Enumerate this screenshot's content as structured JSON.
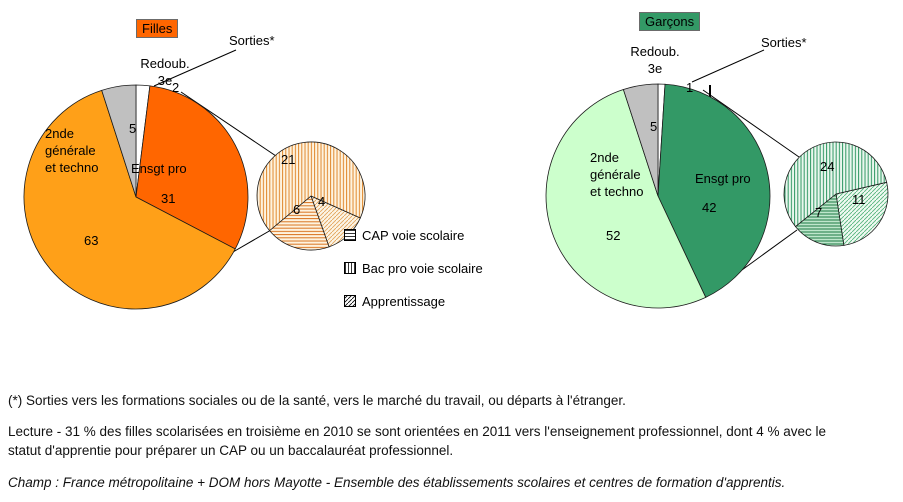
{
  "page": {
    "footnote_sorties": "(*) Sorties vers les formations sociales ou de la santé, vers le marché du travail, ou départs à l'étranger.",
    "lecture": "Lecture - 31 % des filles scolarisées en troisième en 2010 se sont orientées en 2011 vers l'enseignement professionnel, dont 4 % avec le statut d'apprentie pour préparer un CAP ou un baccalauréat professionnel.",
    "champ": "Champ : France métropolitaine + DOM hors Mayotte - Ensemble des établissements scolaires et centres de formation d'apprentis."
  },
  "legend": {
    "position": "center-left between the two chart groups"
  },
  "chart_data": [
    {
      "type": "pie",
      "name": "filles-main",
      "title": "Filles",
      "title_bg": "#FF6600",
      "start_angle_deg": 0,
      "slices": [
        {
          "label": "Sorties*",
          "value": 2,
          "fill": "#FFFFFF"
        },
        {
          "label": "Ensgt pro",
          "value": 31,
          "fill": "#FF6600"
        },
        {
          "label": "2nde générale et techno",
          "value": 63,
          "fill": "#FFA018"
        },
        {
          "label": "Redoub. 3e",
          "value": 5,
          "fill": "#C0C0C0"
        }
      ]
    },
    {
      "type": "pie",
      "name": "filles-detail-ensgt-pro",
      "start_angle_deg": 114,
      "slices": [
        {
          "label": "Apprentissage",
          "value": 4,
          "fill": "hatch-diagonal-orange"
        },
        {
          "label": "CAP voie scolaire",
          "value": 6,
          "fill": "hatch-horizontal-orange"
        },
        {
          "label": "Bac pro voie scolaire",
          "value": 21,
          "fill": "hatch-vertical-orange"
        }
      ]
    },
    {
      "type": "pie",
      "name": "garcons-main",
      "title": "Garçons",
      "title_bg": "#339966",
      "start_angle_deg": 0,
      "slices": [
        {
          "label": "Sorties*",
          "value": 1,
          "fill": "#FFFFFF"
        },
        {
          "label": "Ensgt pro",
          "value": 42,
          "fill": "#339966"
        },
        {
          "label": "2nde générale et techno",
          "value": 52,
          "fill": "#CCFFCC"
        },
        {
          "label": "Redoub. 3e",
          "value": 5,
          "fill": "#C0C0C0"
        }
      ]
    },
    {
      "type": "pie",
      "name": "garcons-detail-ensgt-pro",
      "start_angle_deg": 77,
      "slices": [
        {
          "label": "Apprentissage",
          "value": 11,
          "fill": "hatch-diagonal-green"
        },
        {
          "label": "CAP voie scolaire",
          "value": 7,
          "fill": "hatch-horizontal-green"
        },
        {
          "label": "Bac pro voie scolaire",
          "value": 24,
          "fill": "hatch-vertical-green"
        }
      ]
    }
  ]
}
